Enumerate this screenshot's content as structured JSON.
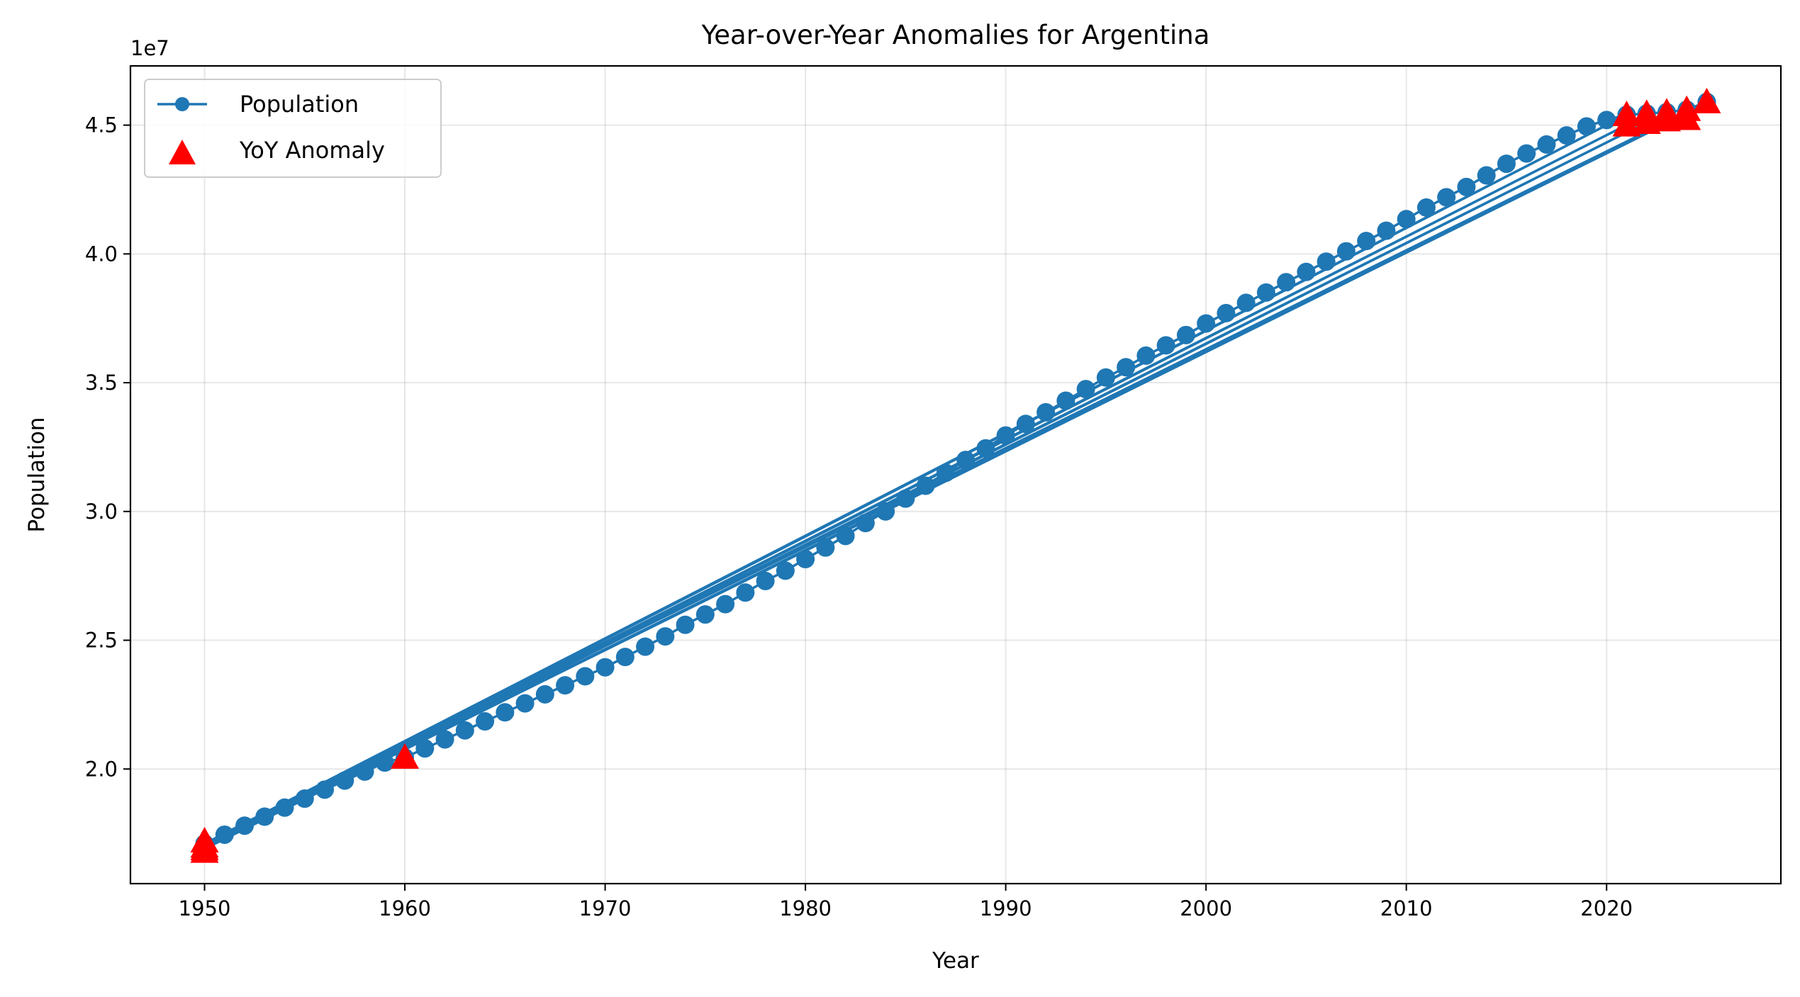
{
  "chart_data": {
    "type": "line",
    "title": "Year-over-Year Anomalies for Argentina",
    "xlabel": "Year",
    "ylabel": "Population",
    "y_scale_label": "1e7",
    "xlim": [
      1946.3,
      2028.7
    ],
    "ylim": [
      1.555,
      4.73
    ],
    "x_ticks": [
      1950,
      1960,
      1970,
      1980,
      1990,
      2000,
      2010,
      2020
    ],
    "x_tick_labels": [
      "1950",
      "1960",
      "1970",
      "1980",
      "1990",
      "2000",
      "2010",
      "2020"
    ],
    "y_ticks": [
      2.0,
      2.5,
      3.0,
      3.5,
      4.0,
      4.5
    ],
    "y_tick_labels": [
      "2.0",
      "2.5",
      "3.0",
      "3.5",
      "4.0",
      "4.5"
    ],
    "grid": true,
    "legend_position": "top-left",
    "series": [
      {
        "name": "Population",
        "color": "#1f77b4",
        "marker": "circle",
        "x": [
          1950,
          1951,
          1952,
          1953,
          1954,
          1955,
          1956,
          1957,
          1958,
          1959,
          1960,
          1961,
          1962,
          1963,
          1964,
          1965,
          1966,
          1967,
          1968,
          1969,
          1970,
          1971,
          1972,
          1973,
          1974,
          1975,
          1976,
          1977,
          1978,
          1979,
          1980,
          1981,
          1982,
          1983,
          1984,
          1985,
          1986,
          1987,
          1988,
          1989,
          1990,
          1991,
          1992,
          1993,
          1994,
          1995,
          1996,
          1997,
          1998,
          1999,
          2000,
          2001,
          2002,
          2003,
          2004,
          2005,
          2006,
          2007,
          2008,
          2009,
          2010,
          2011,
          2012,
          2013,
          2014,
          2015,
          2016,
          2017,
          2018,
          2019,
          2020,
          2021,
          2022,
          2023,
          2024,
          2025,
          1950,
          2021,
          1950,
          2022,
          1950,
          2023,
          1950,
          2024,
          1950,
          2025
        ],
        "y": [
          1.71,
          1.745,
          1.78,
          1.815,
          1.85,
          1.885,
          1.92,
          1.955,
          1.99,
          2.025,
          2.045,
          2.08,
          2.115,
          2.15,
          2.185,
          2.22,
          2.255,
          2.29,
          2.325,
          2.36,
          2.395,
          2.435,
          2.475,
          2.515,
          2.56,
          2.6,
          2.64,
          2.685,
          2.73,
          2.77,
          2.815,
          2.86,
          2.905,
          2.955,
          3.0,
          3.05,
          3.1,
          3.15,
          3.2,
          3.245,
          3.295,
          3.34,
          3.385,
          3.43,
          3.475,
          3.52,
          3.56,
          3.605,
          3.645,
          3.685,
          3.73,
          3.77,
          3.81,
          3.85,
          3.89,
          3.93,
          3.97,
          4.01,
          4.05,
          4.09,
          4.135,
          4.18,
          4.22,
          4.26,
          4.305,
          4.35,
          4.39,
          4.425,
          4.46,
          4.495,
          4.52,
          4.54,
          4.545,
          4.55,
          4.56,
          4.59,
          1.71,
          4.54,
          1.705,
          4.54,
          1.7,
          4.55,
          1.695,
          4.545,
          1.69,
          4.59
        ]
      },
      {
        "name": "YoY Anomaly",
        "color": "#ff0000",
        "marker": "triangle",
        "x": [
          1950,
          1950,
          1950,
          1950,
          1960,
          2021,
          2021,
          2022,
          2022,
          2023,
          2023,
          2024,
          2024,
          2025
        ],
        "y": [
          1.72,
          1.7,
          1.69,
          1.68,
          2.045,
          4.54,
          4.5,
          4.545,
          4.51,
          4.55,
          4.52,
          4.56,
          4.525,
          4.59
        ]
      }
    ]
  }
}
